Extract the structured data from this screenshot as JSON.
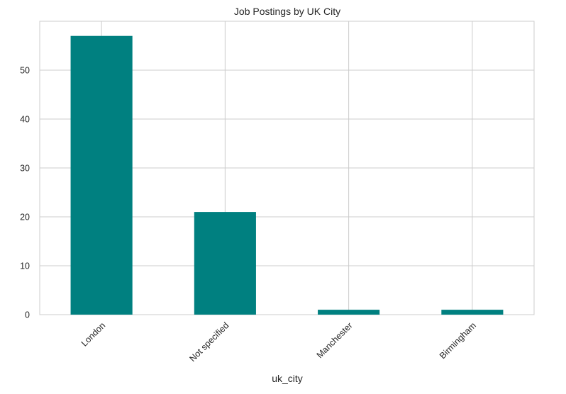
{
  "chart_data": {
    "type": "bar",
    "title": "Job Postings by UK City",
    "xlabel": "uk_city",
    "ylabel": "",
    "categories": [
      "London",
      "Not specified",
      "Manchester",
      "Birmingham"
    ],
    "values": [
      57,
      21,
      1,
      1
    ],
    "ylim": [
      0,
      60
    ],
    "yticks": [
      0,
      10,
      20,
      30,
      40,
      50
    ],
    "grid": true,
    "legend": "none",
    "colors": {
      "bar": "#008080",
      "grid": "#cccccc",
      "axes_edge": "#cccccc",
      "text": "#262626",
      "background": "#ffffff"
    }
  }
}
